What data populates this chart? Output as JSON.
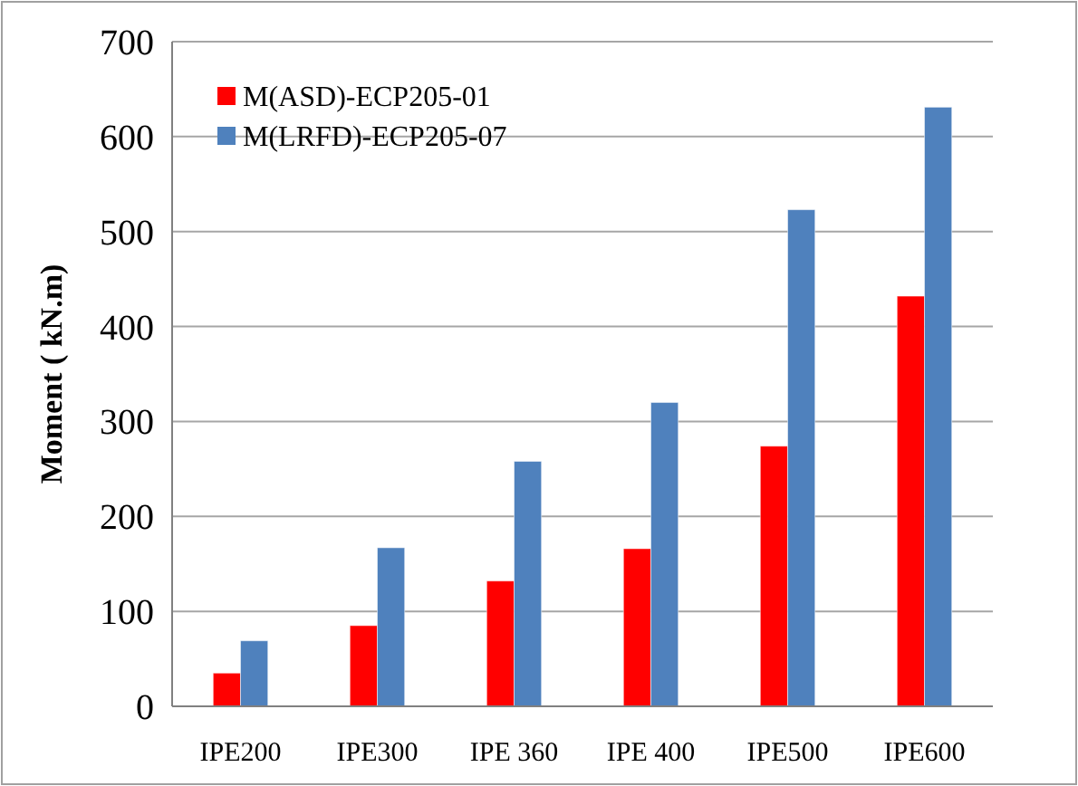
{
  "chart_data": {
    "type": "bar",
    "ylabel": "Moment ( kN.m)",
    "categories": [
      "IPE200",
      "IPE300",
      "IPE 360",
      "IPE 400",
      "IPE500",
      "IPE600"
    ],
    "series": [
      {
        "name": "M(ASD)-ECP205-01",
        "color": "#ff0000",
        "values": [
          35,
          85,
          132,
          166,
          274,
          432
        ]
      },
      {
        "name": "M(LRFD)-ECP205-07",
        "color": "#4f81bd",
        "values": [
          69,
          167,
          258,
          320,
          523,
          631
        ]
      }
    ],
    "ylim": [
      0,
      700
    ],
    "yticks": [
      0,
      100,
      200,
      300,
      400,
      500,
      600,
      700
    ],
    "grid": "y",
    "legend": "top left"
  }
}
